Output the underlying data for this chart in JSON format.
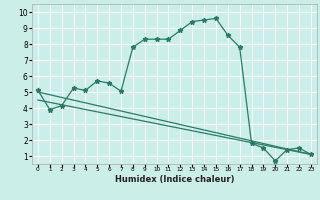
{
  "xlabel": "Humidex (Indice chaleur)",
  "xlim": [
    -0.5,
    23.5
  ],
  "ylim": [
    0.5,
    10.5
  ],
  "xticks": [
    0,
    1,
    2,
    3,
    4,
    5,
    6,
    7,
    8,
    9,
    10,
    11,
    12,
    13,
    14,
    15,
    16,
    17,
    18,
    19,
    20,
    21,
    22,
    23
  ],
  "yticks": [
    1,
    2,
    3,
    4,
    5,
    6,
    7,
    8,
    9,
    10
  ],
  "bg_color": "#cceee8",
  "line_color": "#2a7a6a",
  "line1_x": [
    0,
    1,
    2,
    3,
    4,
    5,
    6,
    7,
    8,
    9,
    10,
    11,
    12,
    13,
    14,
    15,
    16,
    17,
    18,
    19,
    20,
    21,
    22,
    23
  ],
  "line1_y": [
    5.1,
    3.9,
    4.15,
    5.25,
    5.1,
    5.7,
    5.55,
    5.05,
    7.8,
    8.3,
    8.3,
    8.3,
    8.85,
    9.4,
    9.5,
    9.6,
    8.55,
    7.8,
    1.8,
    1.5,
    0.7,
    1.4,
    1.5,
    1.1
  ],
  "line2_x": [
    0,
    23
  ],
  "line2_y": [
    5.0,
    1.1
  ],
  "line3_x": [
    0,
    23
  ],
  "line3_y": [
    4.5,
    1.1
  ]
}
